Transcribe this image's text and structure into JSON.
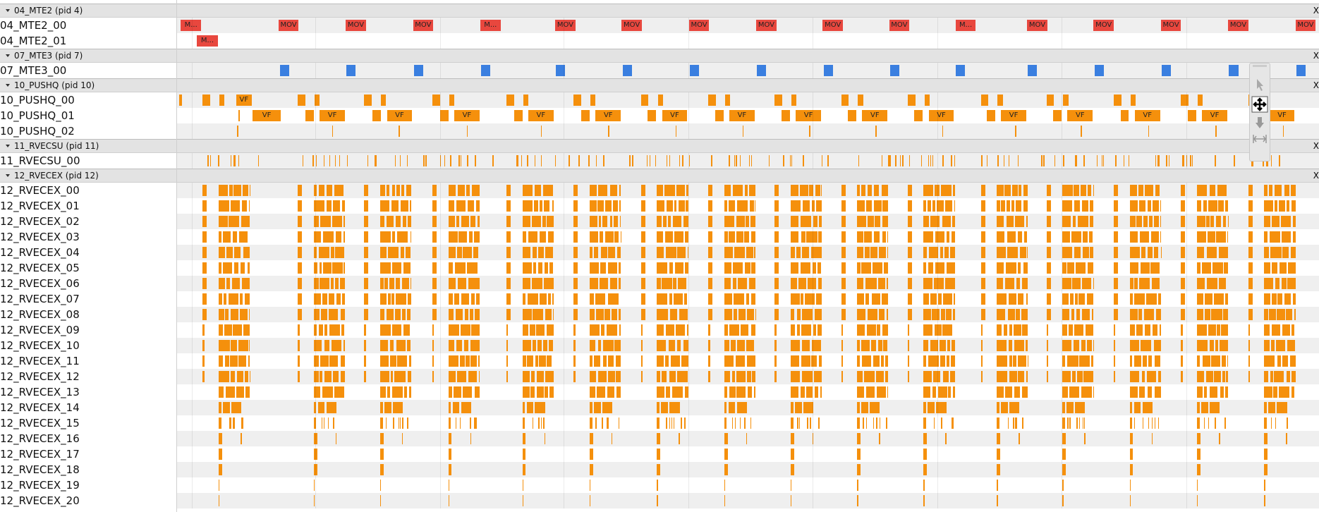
{
  "close_label": "X",
  "groups": [
    {
      "title": "04_MTE2 (pid 4)",
      "tracks": [
        {
          "name": "04_MTE2_00",
          "labels": [
            "M...",
            "MOV",
            "MOV",
            "MOV",
            "M...",
            "MOV",
            "MOV",
            "MOV",
            "MOV",
            "MOV",
            "MOV",
            "M...",
            "MOV",
            "MOV",
            "MOV",
            "MOV",
            "MOV"
          ]
        },
        {
          "name": "04_MTE2_01",
          "labels": [
            "M..."
          ]
        }
      ]
    },
    {
      "title": "07_MTE3 (pid 7)",
      "tracks": [
        {
          "name": "07_MTE3_00"
        }
      ]
    },
    {
      "title": "10_PUSHQ (pid 10)",
      "tracks": [
        {
          "name": "10_PUSHQ_00",
          "labels": [
            "VF"
          ]
        },
        {
          "name": "10_PUSHQ_01",
          "labels": [
            "VF",
            "VF",
            "VF",
            "VF",
            "VF",
            "VF",
            "VF",
            "VF",
            "VF",
            "VF",
            "VF",
            "VF",
            "VF",
            "VF",
            "VF",
            "VF"
          ]
        },
        {
          "name": "10_PUSHQ_02"
        }
      ]
    },
    {
      "title": "11_RVECSU (pid 11)",
      "tracks": [
        {
          "name": "11_RVECSU_00"
        }
      ]
    },
    {
      "title": "12_RVECEX (pid 12)",
      "tracks": [
        {
          "name": "12_RVECEX_00"
        },
        {
          "name": "12_RVECEX_01"
        },
        {
          "name": "12_RVECEX_02"
        },
        {
          "name": "12_RVECEX_03"
        },
        {
          "name": "12_RVECEX_04"
        },
        {
          "name": "12_RVECEX_05"
        },
        {
          "name": "12_RVECEX_06"
        },
        {
          "name": "12_RVECEX_07"
        },
        {
          "name": "12_RVECEX_08"
        },
        {
          "name": "12_RVECEX_09"
        },
        {
          "name": "12_RVECEX_10"
        },
        {
          "name": "12_RVECEX_11"
        },
        {
          "name": "12_RVECEX_12"
        },
        {
          "name": "12_RVECEX_13"
        },
        {
          "name": "12_RVECEX_14"
        },
        {
          "name": "12_RVECEX_15"
        },
        {
          "name": "12_RVECEX_16"
        },
        {
          "name": "12_RVECEX_17"
        },
        {
          "name": "12_RVECEX_18"
        },
        {
          "name": "12_RVECEX_19"
        },
        {
          "name": "12_RVECEX_20"
        }
      ]
    }
  ]
}
